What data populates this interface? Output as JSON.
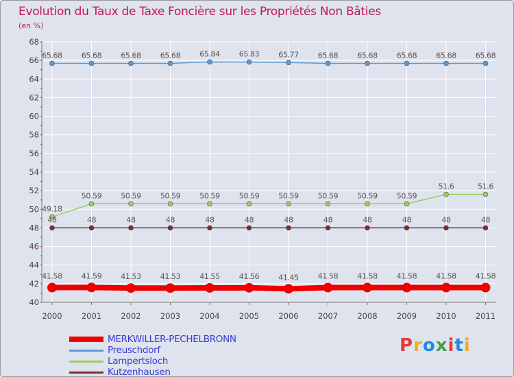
{
  "title": "Evolution du Taux de Taxe Foncière sur les Propriétés Non Bâties",
  "subtitle": "(en %)",
  "logo": {
    "text": "Proxiti",
    "colors": [
      "#e53935",
      "#f9a825",
      "#1e88e5",
      "#43a047",
      "#e53935",
      "#1e88e5",
      "#f9a825"
    ]
  },
  "colors": {
    "background": "#dfe3ee",
    "grid": "#ffffff",
    "axis_text": "#444444",
    "tick_mark": "#c2185b"
  },
  "chart_data": {
    "type": "line",
    "title": "Evolution du Taux de Taxe Foncière sur les Propriétés Non Bâties",
    "ylabel": "(en %)",
    "xlabel": "",
    "ylim": [
      40,
      68
    ],
    "yticks": [
      40,
      42,
      44,
      46,
      48,
      50,
      52,
      54,
      56,
      58,
      60,
      62,
      64,
      66,
      68
    ],
    "categories": [
      "2000",
      "2001",
      "2002",
      "2003",
      "2004",
      "2005",
      "2006",
      "2007",
      "2008",
      "2009",
      "2010",
      "2011"
    ],
    "grid": true,
    "legend_position": "bottom-left",
    "series": [
      {
        "name": "MERKWILLER-PECHELBRONN",
        "color": "#ee0000",
        "values": [
          41.58,
          41.59,
          41.53,
          41.53,
          41.55,
          41.56,
          41.45,
          41.58,
          41.58,
          41.58,
          41.58,
          41.58
        ],
        "labels": [
          "41.58",
          "41.59",
          "41.53",
          "41.53",
          "41.55",
          "41.56",
          "41.45",
          "41.58",
          "41.58",
          "41.58",
          "41.58",
          "41.58"
        ]
      },
      {
        "name": "Preuschdorf",
        "color": "#5b9bd5",
        "values": [
          65.68,
          65.68,
          65.68,
          65.68,
          65.84,
          65.83,
          65.77,
          65.68,
          65.68,
          65.68,
          65.68,
          65.68
        ],
        "labels": [
          "65.68",
          "65.68",
          "65.68",
          "65.68",
          "65.84",
          "65.83",
          "65.77",
          "65.68",
          "65.68",
          "65.68",
          "65.68",
          "65.68"
        ]
      },
      {
        "name": "Lampertsloch",
        "color": "#9acd5a",
        "values": [
          49.18,
          50.59,
          50.59,
          50.59,
          50.59,
          50.59,
          50.59,
          50.59,
          50.59,
          50.59,
          51.6,
          51.6
        ],
        "labels": [
          "49.18",
          "50.59",
          "50.59",
          "50.59",
          "50.59",
          "50.59",
          "50.59",
          "50.59",
          "50.59",
          "50.59",
          "51.6",
          "51.6"
        ]
      },
      {
        "name": "Kutzenhausen",
        "color": "#7b2d2d",
        "values": [
          48,
          48,
          48,
          48,
          48,
          48,
          48,
          48,
          48,
          48,
          48,
          48
        ],
        "labels": [
          "48",
          "48",
          "48",
          "48",
          "48",
          "48",
          "48",
          "48",
          "48",
          "48",
          "48",
          "48"
        ]
      }
    ]
  }
}
